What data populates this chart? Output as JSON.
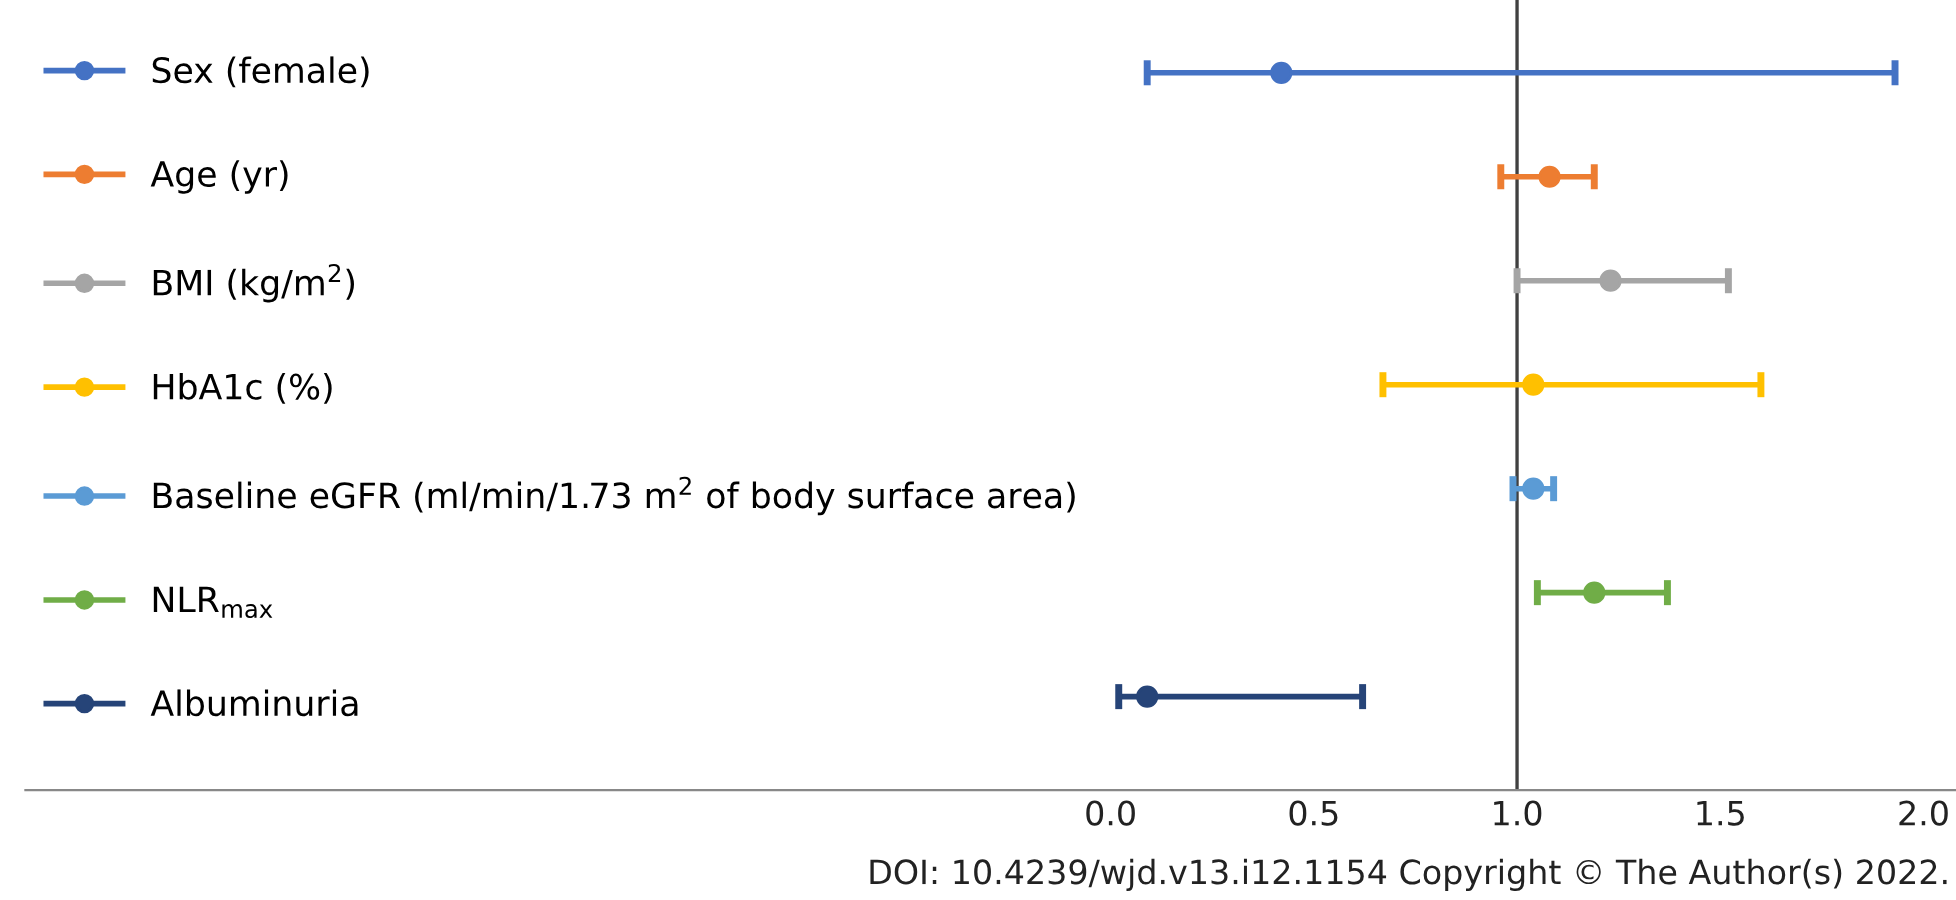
{
  "chart_data": {
    "type": "scatter",
    "orientation": "horizontal",
    "categories": [
      null,
      null,
      null,
      null,
      null,
      null,
      null
    ],
    "series": [
      {
        "name": "Sex (female)",
        "color": "#4472c4",
        "values": [
          0.42,
          null,
          null,
          null,
          null,
          null,
          null
        ],
        "errors": [
          [
            0.09,
            1.93
          ],
          null,
          null,
          null,
          null,
          null,
          null
        ]
      },
      {
        "name": "Age (yr)",
        "color": "#ed7d31",
        "values": [
          null,
          1.08,
          null,
          null,
          null,
          null,
          null
        ],
        "errors": [
          null,
          [
            0.96,
            1.19
          ],
          null,
          null,
          null,
          null,
          null
        ]
      },
      {
        "name": "BMI (kg/m$^{2}$)",
        "color": "#a5a5a5",
        "values": [
          null,
          null,
          1.23,
          null,
          null,
          null,
          null
        ],
        "errors": [
          null,
          null,
          [
            1.0,
            1.52
          ],
          null,
          null,
          null,
          null
        ]
      },
      {
        "name": "HbA1c (%)",
        "color": "#ffc000",
        "values": [
          null,
          null,
          null,
          1.04,
          null,
          null,
          null
        ],
        "errors": [
          null,
          null,
          null,
          [
            0.67,
            1.6
          ],
          null,
          null,
          null
        ]
      },
      {
        "name": "Baseline eGFR (ml/min/1.73 m$^{2}$ of body surface area)",
        "color": "#5b9bd5",
        "values": [
          null,
          null,
          null,
          null,
          1.04,
          null,
          null
        ],
        "errors": [
          null,
          null,
          null,
          null,
          [
            0.99,
            1.09
          ],
          null,
          null
        ]
      },
      {
        "name": "NLR$_{max}$",
        "color": "#70ad47",
        "values": [
          null,
          null,
          null,
          null,
          null,
          1.19,
          null
        ],
        "errors": [
          null,
          null,
          null,
          null,
          null,
          [
            1.05,
            1.37
          ],
          null
        ]
      },
      {
        "name": "Albuminuria",
        "color": "#264478",
        "values": [
          null,
          null,
          null,
          null,
          null,
          null,
          0.09
        ],
        "errors": [
          null,
          null,
          null,
          null,
          null,
          null,
          [
            0.02,
            0.62
          ]
        ]
      }
    ],
    "xlim": [
      -2.67,
      2.08
    ],
    "xticks": [
      {
        "value": 0,
        "label": "0.0"
      },
      {
        "value": 0.5,
        "label": "0.5"
      },
      {
        "value": 1,
        "label": "1.0"
      },
      {
        "value": 1.5,
        "label": "1.5"
      },
      {
        "value": 2,
        "label": "2.0"
      }
    ],
    "ref_lines": [
      {
        "axis": "x",
        "value": 1.0,
        "color": "#404040"
      }
    ],
    "marker": "circle",
    "legend": "left",
    "tick_labels": "x",
    "grid": false,
    "annotations": [
      "DOI: 10.4239/wjd.v13.i12.1154 Copyright © The Author(s) 2022."
    ]
  }
}
